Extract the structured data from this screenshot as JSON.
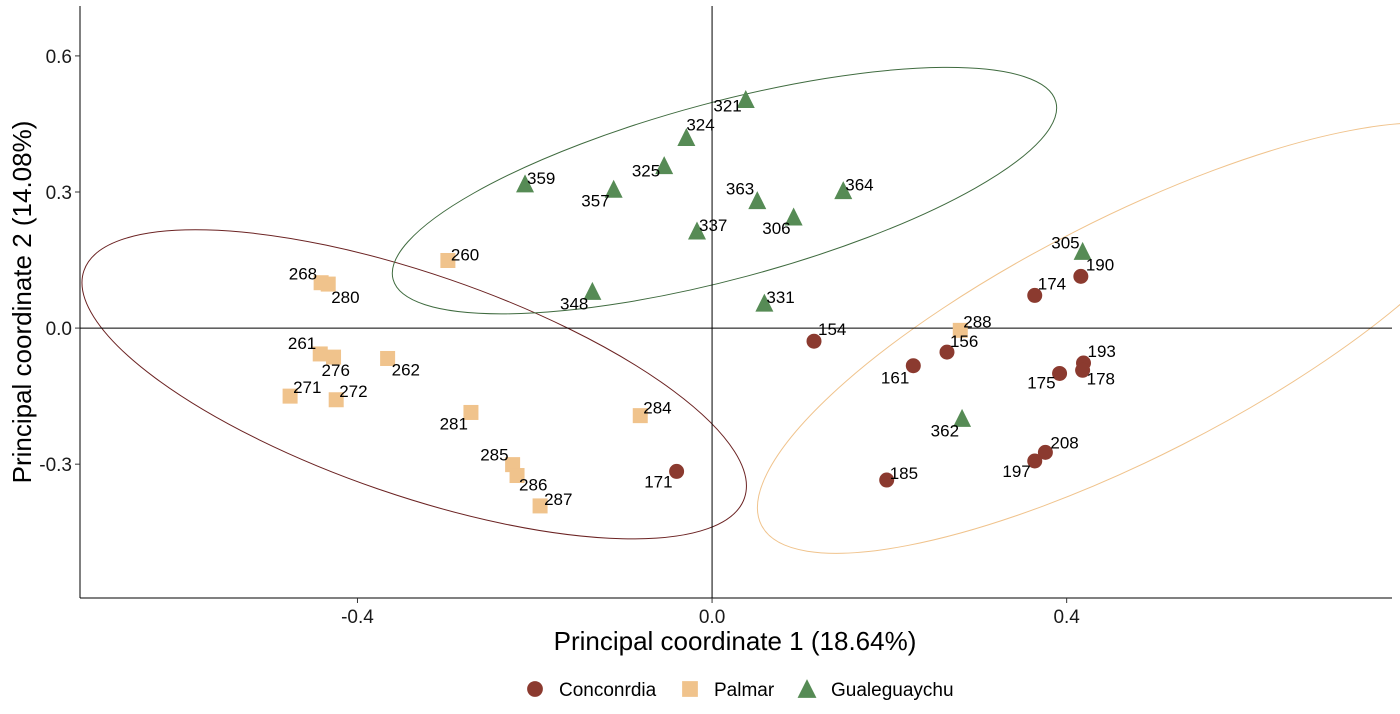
{
  "chart_data": {
    "type": "scatter",
    "xlabel": "Principal coordinate 1 (18.64%)",
    "ylabel": "Principal coordinate 2 (14.08%)",
    "xlim": [
      -0.713,
      0.767
    ],
    "ylim": [
      -0.595,
      0.71
    ],
    "x_ticks": [
      -0.4,
      0.0,
      0.4
    ],
    "x_tick_labels": [
      "-0.4",
      "0.0",
      "0.4"
    ],
    "y_ticks": [
      -0.3,
      0.0,
      0.3,
      0.6
    ],
    "y_tick_labels": [
      "-0.3",
      "0.0",
      "0.3",
      "0.6"
    ],
    "grid": false,
    "reference_lines": {
      "x": 0,
      "y": 0
    },
    "legend_position": "bottom",
    "series": [
      {
        "name": "Conconrdia",
        "marker": "circle",
        "color": "#8b3a2f",
        "points": [
          {
            "label": "190",
            "x": 0.416,
            "y": 0.114
          },
          {
            "label": "174",
            "x": 0.364,
            "y": 0.072
          },
          {
            "label": "154",
            "x": 0.115,
            "y": -0.029
          },
          {
            "label": "156",
            "x": 0.265,
            "y": -0.053
          },
          {
            "label": "161",
            "x": 0.227,
            "y": -0.083
          },
          {
            "label": "193",
            "x": 0.419,
            "y": -0.077
          },
          {
            "label": "178",
            "x": 0.418,
            "y": -0.093
          },
          {
            "label": "175",
            "x": 0.392,
            "y": -0.1
          },
          {
            "label": "208",
            "x": 0.376,
            "y": -0.274
          },
          {
            "label": "197",
            "x": 0.364,
            "y": -0.293
          },
          {
            "label": "185",
            "x": 0.197,
            "y": -0.335
          },
          {
            "label": "171",
            "x": -0.04,
            "y": -0.316
          }
        ]
      },
      {
        "name": "Palmar",
        "marker": "square",
        "color": "#f0c38c",
        "points": [
          {
            "label": "260",
            "x": -0.298,
            "y": 0.149
          },
          {
            "label": "268",
            "x": -0.441,
            "y": 0.1
          },
          {
            "label": "280",
            "x": -0.433,
            "y": 0.097
          },
          {
            "label": "288",
            "x": 0.28,
            "y": -0.005
          },
          {
            "label": "261",
            "x": -0.442,
            "y": -0.057
          },
          {
            "label": "276",
            "x": -0.427,
            "y": -0.064
          },
          {
            "label": "262",
            "x": -0.366,
            "y": -0.067
          },
          {
            "label": "271",
            "x": -0.476,
            "y": -0.15
          },
          {
            "label": "272",
            "x": -0.424,
            "y": -0.158
          },
          {
            "label": "281",
            "x": -0.272,
            "y": -0.186
          },
          {
            "label": "284",
            "x": -0.081,
            "y": -0.193
          },
          {
            "label": "285",
            "x": -0.225,
            "y": -0.301
          },
          {
            "label": "286",
            "x": -0.22,
            "y": -0.325
          },
          {
            "label": "287",
            "x": -0.194,
            "y": -0.392
          }
        ]
      },
      {
        "name": "Gualeguaychu",
        "marker": "triangle",
        "color": "#568b55",
        "points": [
          {
            "label": "321",
            "x": 0.038,
            "y": 0.504
          },
          {
            "label": "324",
            "x": -0.029,
            "y": 0.42
          },
          {
            "label": "325",
            "x": -0.054,
            "y": 0.358
          },
          {
            "label": "359",
            "x": -0.211,
            "y": 0.318
          },
          {
            "label": "357",
            "x": -0.111,
            "y": 0.306
          },
          {
            "label": "364",
            "x": 0.148,
            "y": 0.303
          },
          {
            "label": "363",
            "x": 0.051,
            "y": 0.281
          },
          {
            "label": "306",
            "x": 0.092,
            "y": 0.245
          },
          {
            "label": "337",
            "x": -0.017,
            "y": 0.214
          },
          {
            "label": "305",
            "x": 0.418,
            "y": 0.169
          },
          {
            "label": "348",
            "x": -0.135,
            "y": 0.081
          },
          {
            "label": "331",
            "x": 0.059,
            "y": 0.055
          },
          {
            "label": "362",
            "x": 0.282,
            "y": -0.199
          }
        ]
      }
    ],
    "ellipses": [
      {
        "series": "Conconrdia",
        "color": "#f0c38c",
        "cx": 0.47,
        "cy": -0.022,
        "rx": 0.465,
        "ry": 0.263,
        "rotation_deg": -27
      },
      {
        "series": "Palmar",
        "color": "#6b2222",
        "cx": -0.336,
        "cy": -0.124,
        "rx": 0.394,
        "ry": 0.244,
        "rotation_deg": 19
      },
      {
        "series": "Gualeguaychu",
        "color": "#3f6b3f",
        "cx": 0.014,
        "cy": 0.303,
        "rx": 0.387,
        "ry": 0.195,
        "rotation_deg": -15
      }
    ]
  }
}
